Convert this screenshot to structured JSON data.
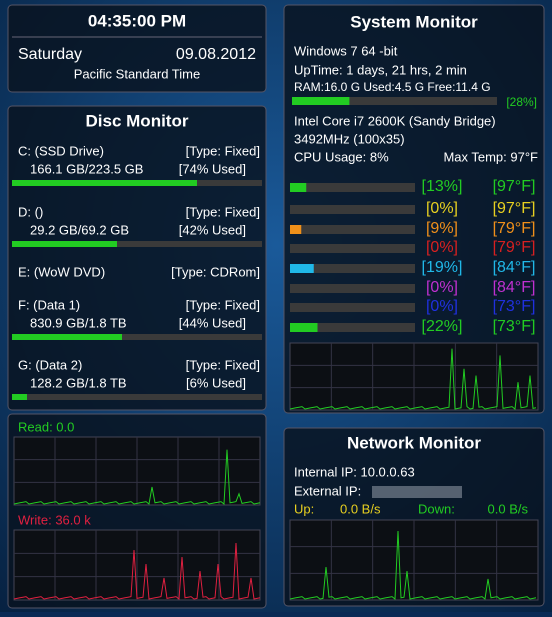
{
  "clock": {
    "time": "04:35:00 PM",
    "day": "Saturday",
    "date": "09.08.2012",
    "timezone": "Pacific Standard Time"
  },
  "disc": {
    "title": "Disc Monitor",
    "drives": [
      {
        "name": "C: (SSD Drive)",
        "type": "[Type: Fixed]",
        "usage": "166.1 GB/223.5 GB",
        "used_pct": 74,
        "used_label": "[74% Used]"
      },
      {
        "name": "D: ()",
        "type": "[Type: Fixed]",
        "usage": "29.2 GB/69.2 GB",
        "used_pct": 42,
        "used_label": "[42% Used]"
      },
      {
        "name": "E: (WoW DVD)",
        "type": "[Type: CDRom]"
      },
      {
        "name": "F: (Data 1)",
        "type": "[Type: Fixed]",
        "usage": "830.9 GB/1.8 TB",
        "used_pct": 44,
        "used_label": "[44% Used]"
      },
      {
        "name": "G: (Data 2)",
        "type": "[Type: Fixed]",
        "usage": "128.2 GB/1.8 TB",
        "used_pct": 6,
        "used_label": "[6% Used]"
      }
    ],
    "read": "Read: 0.0",
    "write": "Write: 36.0 k"
  },
  "system": {
    "title": "System Monitor",
    "os": "Windows 7 64 -bit",
    "uptime": "UpTime: 1 days, 21 hrs, 2 min",
    "ram": "RAM:16.0 G  Used:4.5 G  Free:11.4 G",
    "ram_pct": 28,
    "ram_label": "[28%]",
    "cpu": "Intel Core i7 2600K (Sandy Bridge)",
    "speed": "3492MHz (100x35)",
    "cpu_usage": "CPU Usage: 8%",
    "max_temp": "Max Temp: 97°F",
    "cores": [
      {
        "pct": 13,
        "label": "[13%]",
        "temp": "[97°F]",
        "color": "#22cc22"
      },
      {
        "pct": 0,
        "label": "[0%]",
        "temp": "[97°F]",
        "color": "#e8d020"
      },
      {
        "pct": 9,
        "label": "[9%]",
        "temp": "[79°F]",
        "color": "#f0901a"
      },
      {
        "pct": 0,
        "label": "[0%]",
        "temp": "[79°F]",
        "color": "#d82020"
      },
      {
        "pct": 19,
        "label": "[19%]",
        "temp": "[84°F]",
        "color": "#20b8e8"
      },
      {
        "pct": 0,
        "label": "[0%]",
        "temp": "[84°F]",
        "color": "#c030d0"
      },
      {
        "pct": 0,
        "label": "[0%]",
        "temp": "[73°F]",
        "color": "#2030e0"
      },
      {
        "pct": 22,
        "label": "[22%]",
        "temp": "[73°F]",
        "color": "#22cc22"
      }
    ]
  },
  "network": {
    "title": "Network Monitor",
    "internal_ip": "Internal IP: 10.0.0.63",
    "external_ip": "External IP:",
    "up_label": "Up:",
    "up": "0.0 B/s",
    "down_label": "Down:",
    "down": "0.0 B/s"
  }
}
